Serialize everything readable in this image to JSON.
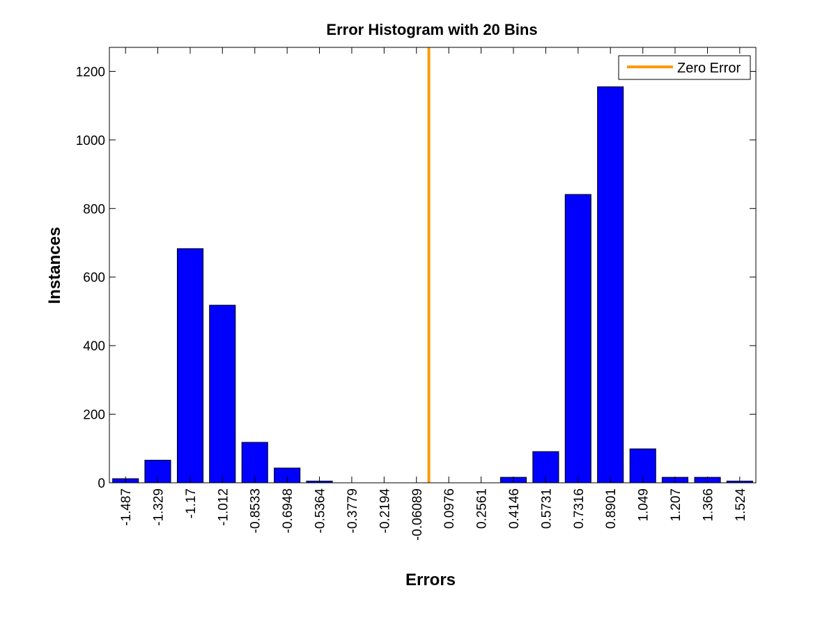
{
  "chart_data": {
    "type": "bar",
    "title": "Error Histogram with 20 Bins",
    "xlabel": "Errors",
    "ylabel": "Instances",
    "categories": [
      "-1.487",
      "-1.329",
      "-1.17",
      "-1.012",
      "-0.8533",
      "-0.6948",
      "-0.5364",
      "-0.3779",
      "-0.2194",
      "-0.06089",
      "0.0976",
      "0.2561",
      "0.4146",
      "0.5731",
      "0.7316",
      "0.8901",
      "1.049",
      "1.207",
      "1.366",
      "1.524"
    ],
    "values": [
      12,
      66,
      683,
      518,
      118,
      43,
      5,
      0,
      0,
      0,
      0,
      0,
      16,
      91,
      841,
      1155,
      99,
      16,
      16,
      5
    ],
    "ylim": [
      0,
      1270
    ],
    "yticks": [
      "0",
      "200",
      "400",
      "600",
      "800",
      "1000",
      "1200"
    ],
    "reference_line": {
      "name": "Zero Error",
      "x": 0,
      "color": "#ff9900"
    },
    "bar_color": "#0000ff",
    "legend": {
      "entries": [
        "Zero Error"
      ],
      "placement": "top-right"
    },
    "grid": false
  }
}
